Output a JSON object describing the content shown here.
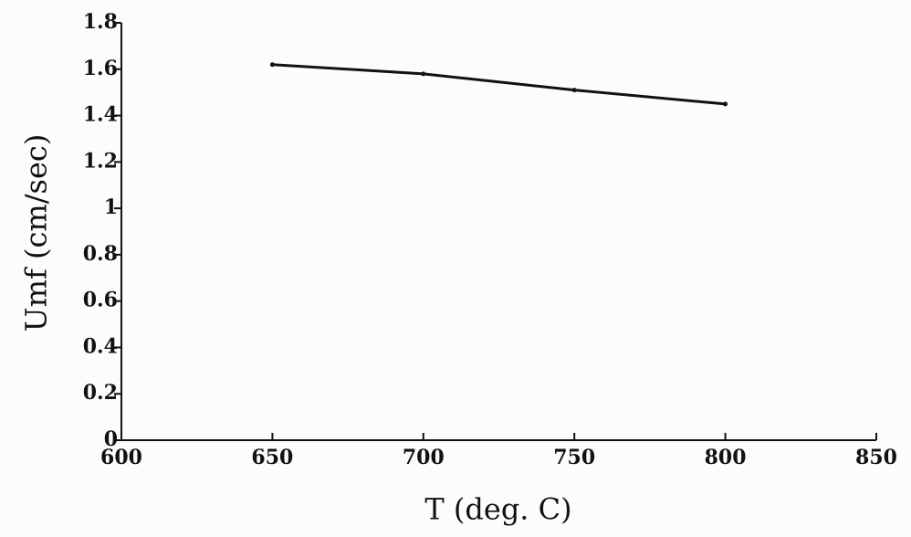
{
  "chart_data": {
    "type": "line",
    "x_label": "T (deg. C)",
    "y_label": "Umf (cm/sec)",
    "x": [
      650,
      700,
      750,
      800
    ],
    "values": [
      1.62,
      1.58,
      1.51,
      1.45
    ],
    "color": "#111111",
    "xlim": [
      600,
      850
    ],
    "xticks": [
      600,
      650,
      700,
      750,
      800,
      850
    ],
    "ylim": [
      0,
      1.8
    ],
    "yticks": [
      0,
      0.2,
      0.4,
      0.6,
      0.8,
      1,
      1.2,
      1.4,
      1.6,
      1.8
    ],
    "grid": false
  }
}
